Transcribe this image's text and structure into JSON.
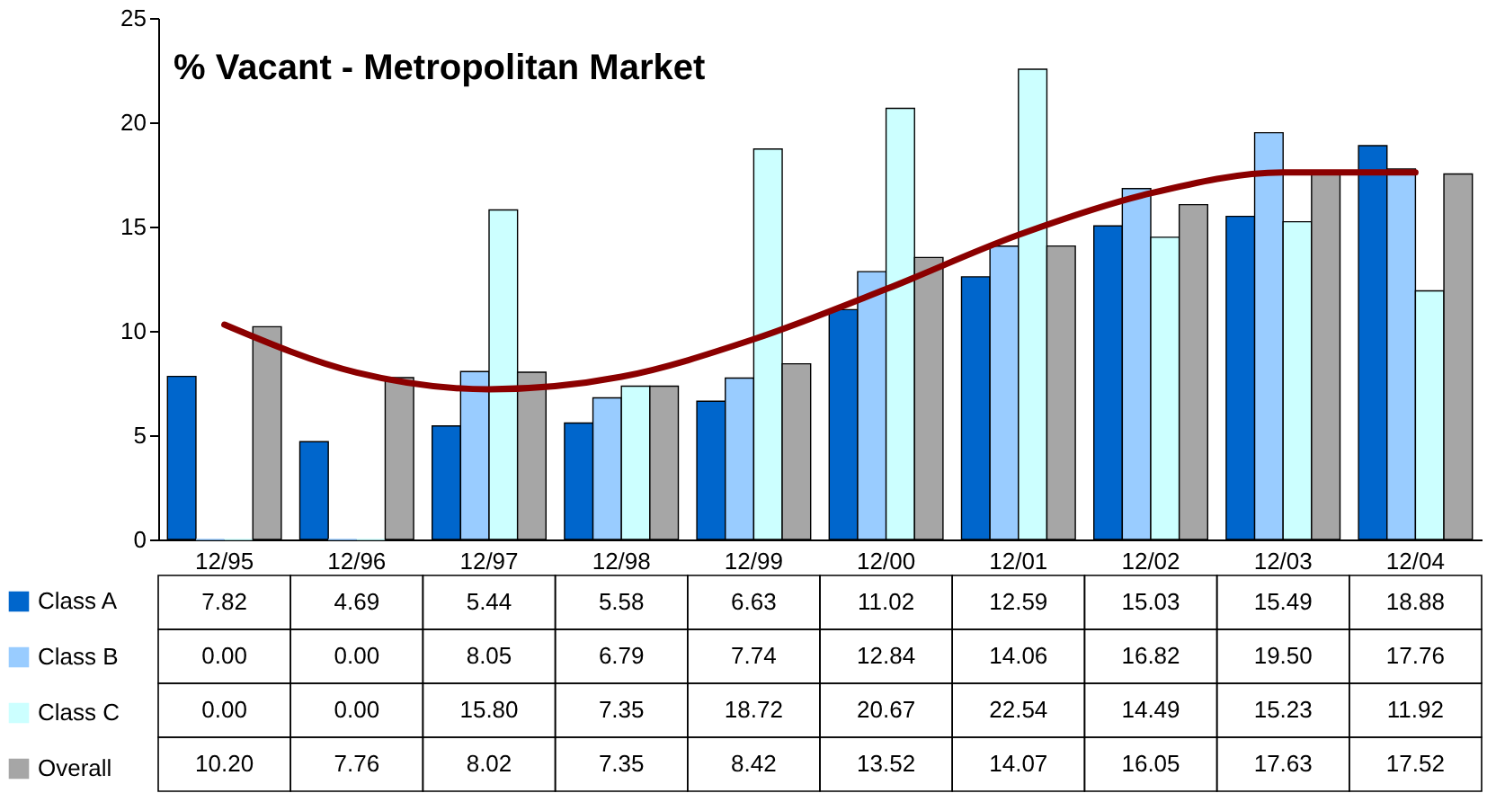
{
  "chart_data": {
    "type": "bar",
    "title": "% Vacant - Metropolitan Market",
    "categories": [
      "12/95",
      "12/96",
      "12/97",
      "12/98",
      "12/99",
      "12/00",
      "12/01",
      "12/02",
      "12/03",
      "12/04"
    ],
    "series": [
      {
        "name": "Class A",
        "color": "#0066cc",
        "values": [
          7.82,
          4.69,
          5.44,
          5.58,
          6.63,
          11.02,
          12.59,
          15.03,
          15.49,
          18.88
        ],
        "value_labels": [
          "7.82",
          "4.69",
          "5.44",
          "5.58",
          "6.63",
          "11.02",
          "12.59",
          "15.03",
          "15.49",
          "18.88"
        ]
      },
      {
        "name": "Class B",
        "color": "#99ccff",
        "values": [
          0.0,
          0.0,
          8.05,
          6.79,
          7.74,
          12.84,
          14.06,
          16.82,
          19.5,
          17.76
        ],
        "value_labels": [
          "0.00",
          "0.00",
          "8.05",
          "6.79",
          "7.74",
          "12.84",
          "14.06",
          "16.82",
          "19.50",
          "17.76"
        ]
      },
      {
        "name": "Class C",
        "color": "#ccffff",
        "values": [
          0.0,
          0.0,
          15.8,
          7.35,
          18.72,
          20.67,
          22.54,
          14.49,
          15.23,
          11.92
        ],
        "value_labels": [
          "0.00",
          "0.00",
          "15.80",
          "7.35",
          "18.72",
          "20.67",
          "22.54",
          "14.49",
          "15.23",
          "11.92"
        ]
      },
      {
        "name": "Overall",
        "color": "#a6a6a6",
        "values": [
          10.2,
          7.76,
          8.02,
          7.35,
          8.42,
          13.52,
          14.07,
          16.05,
          17.63,
          17.52
        ],
        "value_labels": [
          "10.20",
          "7.76",
          "8.02",
          "7.35",
          "8.42",
          "13.52",
          "14.07",
          "16.05",
          "17.63",
          "17.52"
        ]
      },
      {
        "type": "line",
        "color": "#8b0000",
        "values": [
          10.3,
          8.0,
          7.2,
          7.8,
          9.6,
          12.0,
          14.6,
          16.6,
          17.6,
          17.6
        ]
      }
    ],
    "ylim": [
      0,
      25
    ],
    "yticks": [
      0,
      5,
      10,
      15,
      20,
      25
    ],
    "grid": false,
    "legend": "bottom left"
  }
}
